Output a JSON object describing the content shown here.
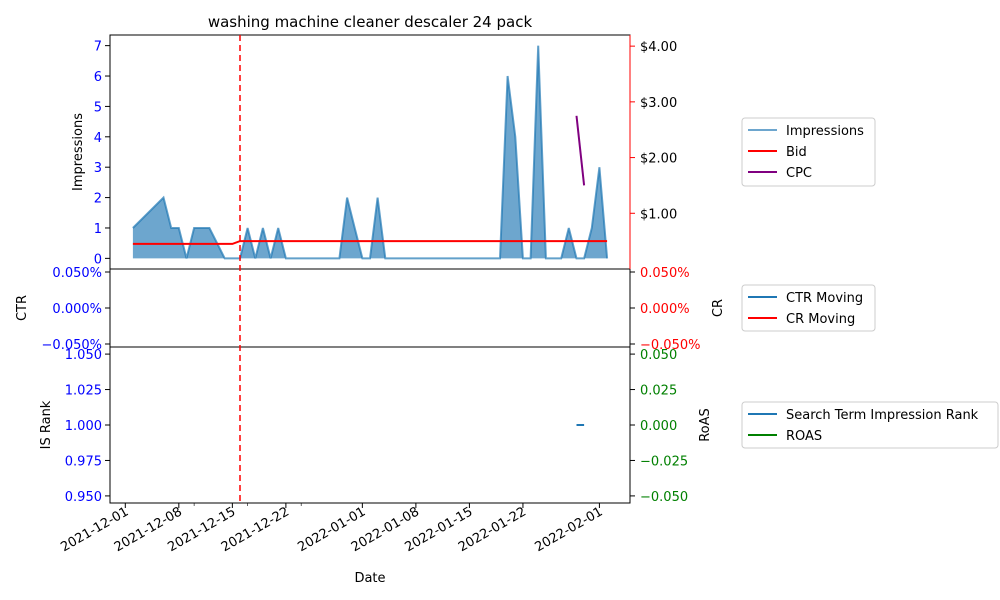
{
  "title": "washing machine cleaner descaler 24 pack",
  "colors": {
    "impressions": "#1f77b4",
    "bid": "#ff0000",
    "cpc": "#800080",
    "vline": "#ff0000",
    "left_tick": "#0000ff",
    "right_tick_top": "#000000",
    "right_tick_mid": "#ff0000",
    "right_tick_bottom": "#008000",
    "ctr": "#1f77b4",
    "cr": "#ff0000",
    "rank": "#1f77b4",
    "roas": "#008000"
  },
  "chart_data": {
    "type": "line",
    "xlabel": "Date",
    "x_ticks": [
      "2021-12-01",
      "2021-12-08",
      "2021-12-15",
      "2021-12-22",
      "2022-01-01",
      "2022-01-08",
      "2022-01-15",
      "2022-01-22",
      "2022-02-01"
    ],
    "marker_date": "2021-12-16",
    "panels": [
      {
        "id": "top",
        "ylabel_left": "Impressions",
        "ylim_left": [
          -0.35,
          7.35
        ],
        "yticks_left": [
          "0",
          "1",
          "2",
          "3",
          "4",
          "5",
          "6",
          "7"
        ],
        "ylim_right": [
          0,
          4.2
        ],
        "yticks_right": [
          "$1.00",
          "$2.00",
          "$3.00",
          "$4.00"
        ],
        "series": [
          {
            "name": "Impressions",
            "type": "area",
            "x": [
              "2021-12-02",
              "2021-12-06",
              "2021-12-07",
              "2021-12-08",
              "2021-12-09",
              "2021-12-10",
              "2021-12-11",
              "2021-12-12",
              "2021-12-13",
              "2021-12-14",
              "2021-12-15",
              "2021-12-16",
              "2021-12-17",
              "2021-12-18",
              "2021-12-19",
              "2021-12-20",
              "2021-12-21",
              "2021-12-22",
              "2021-12-29",
              "2021-12-30",
              "2021-12-31",
              "2022-01-01",
              "2022-01-02",
              "2022-01-03",
              "2022-01-04",
              "2022-01-19",
              "2022-01-20",
              "2022-01-21",
              "2022-01-22",
              "2022-01-23",
              "2022-01-24",
              "2022-01-25",
              "2022-01-26",
              "2022-01-27",
              "2022-01-28",
              "2022-01-29",
              "2022-01-30",
              "2022-01-31",
              "2022-02-01"
            ],
            "values": [
              1,
              2,
              1,
              1,
              0,
              1,
              1,
              1,
              0.5,
              0,
              0,
              0,
              1,
              0,
              1,
              0,
              1,
              0,
              0,
              2,
              1,
              0,
              0,
              2,
              0,
              0,
              6,
              4,
              0,
              0,
              7,
              0,
              0,
              0,
              1,
              0,
              0,
              1,
              3
            ]
          },
          {
            "name": "Bid",
            "type": "line",
            "axis": "right",
            "x": [
              "2021-12-02",
              "2021-12-15",
              "2021-12-16",
              "2022-02-02"
            ],
            "values": [
              0.45,
              0.45,
              0.5,
              0.5
            ]
          },
          {
            "name": "CPC",
            "type": "line",
            "axis": "right",
            "x": [
              "2022-01-29",
              "2022-01-30"
            ],
            "values": [
              2.75,
              1.5
            ]
          }
        ],
        "legend": [
          "Impressions",
          "Bid",
          "CPC"
        ]
      },
      {
        "id": "middle",
        "ylabel_left": "CTR",
        "ylabel_right": "CR",
        "yticks_left": [
          "0.050%",
          "0.000%",
          "−0.050%"
        ],
        "yticks_right": [
          "0.050%",
          "0.000%",
          "−0.050%"
        ],
        "series": [
          {
            "name": "CTR Moving",
            "values": []
          },
          {
            "name": "CR Moving",
            "values": []
          }
        ],
        "legend": [
          "CTR Moving",
          "CR Moving"
        ]
      },
      {
        "id": "bottom",
        "ylabel_left": "IS Rank",
        "ylabel_right": "RoAS",
        "ylim_left": [
          0.945,
          1.055
        ],
        "yticks_left": [
          "0.950",
          "0.975",
          "1.000",
          "1.025",
          "1.050"
        ],
        "ylim_right": [
          -0.055,
          0.055
        ],
        "yticks_right": [
          "−0.050",
          "−0.025",
          "0.000",
          "0.025",
          "0.050"
        ],
        "series": [
          {
            "name": "Search Term Impression Rank",
            "x": [
              "2022-01-29",
              "2022-01-30"
            ],
            "values": [
              1.0,
              1.0
            ]
          },
          {
            "name": "ROAS",
            "values": []
          }
        ],
        "legend": [
          "Search Term Impression Rank",
          "ROAS"
        ]
      }
    ]
  }
}
